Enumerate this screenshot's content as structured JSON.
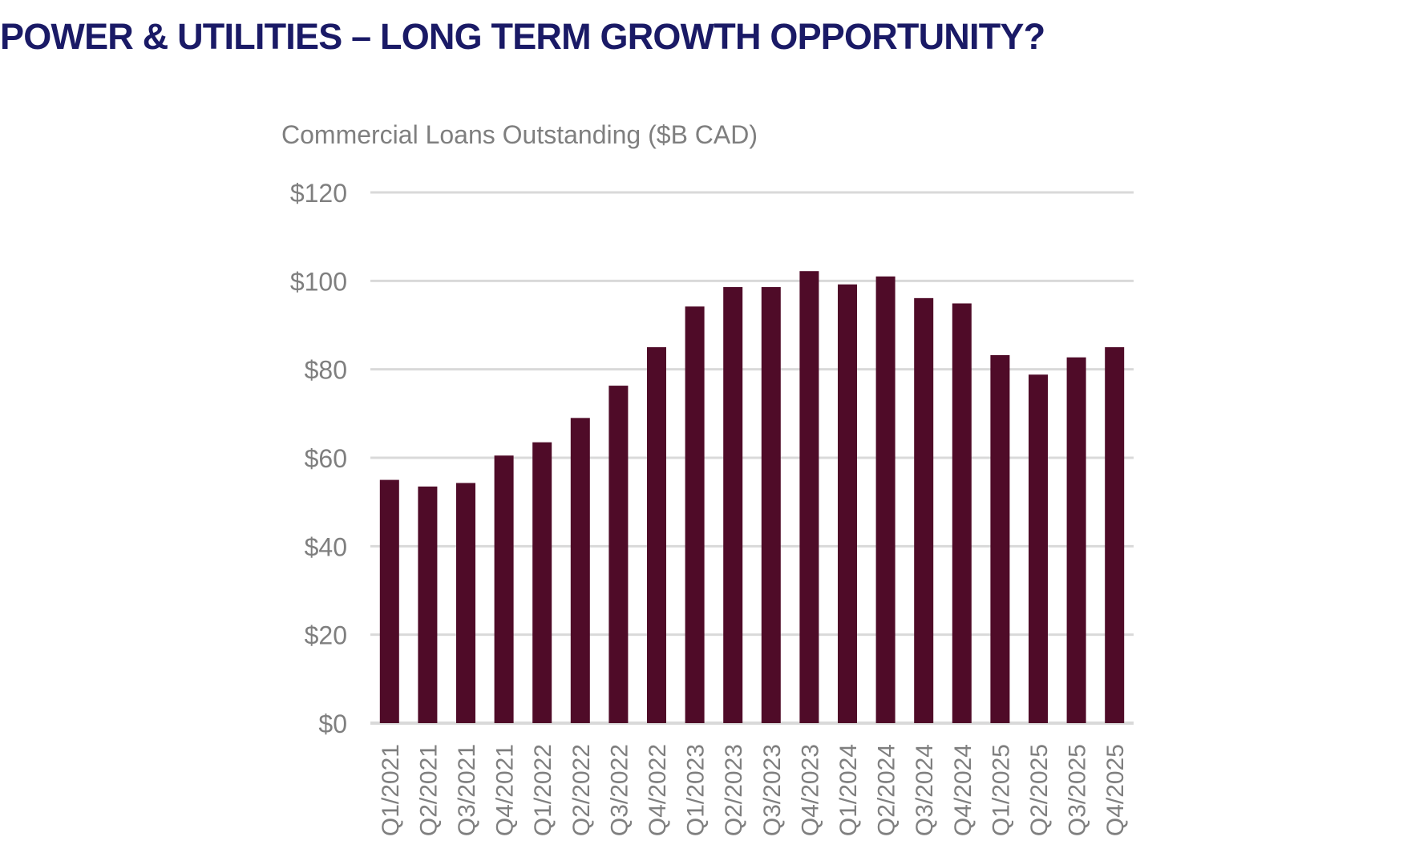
{
  "slide": {
    "title": "POWER & UTILITIES – LONG TERM GROWTH OPPORTUNITY?"
  },
  "colors": {
    "title": "#1a1a66",
    "bar": "#4f0b28",
    "gridline": "#d9d9d9",
    "axis_text": "#7f7f7f"
  },
  "chart_data": {
    "type": "bar",
    "title": "Commercial Loans Outstanding ($B CAD)",
    "xlabel": "",
    "ylabel": "",
    "categories": [
      "Q1/2021",
      "Q2/2021",
      "Q3/2021",
      "Q4/2021",
      "Q1/2022",
      "Q2/2022",
      "Q3/2022",
      "Q4/2022",
      "Q1/2023",
      "Q2/2023",
      "Q3/2023",
      "Q4/2023",
      "Q1/2024",
      "Q2/2024",
      "Q3/2024",
      "Q4/2024",
      "Q1/2025",
      "Q2/2025",
      "Q3/2025",
      "Q4/2025"
    ],
    "values": [
      55,
      53.5,
      54.3,
      60.5,
      63.5,
      69,
      76.3,
      85,
      94.2,
      98.6,
      98.6,
      102.2,
      99.2,
      101,
      96.1,
      94.9,
      83.2,
      78.8,
      82.7,
      85
    ],
    "ylim": [
      0,
      120
    ],
    "yticks": [
      0,
      20,
      40,
      60,
      80,
      100,
      120
    ],
    "ytick_labels": [
      "$0",
      "$20",
      "$40",
      "$60",
      "$80",
      "$100",
      "$120"
    ],
    "grid": true,
    "legend": "none"
  }
}
